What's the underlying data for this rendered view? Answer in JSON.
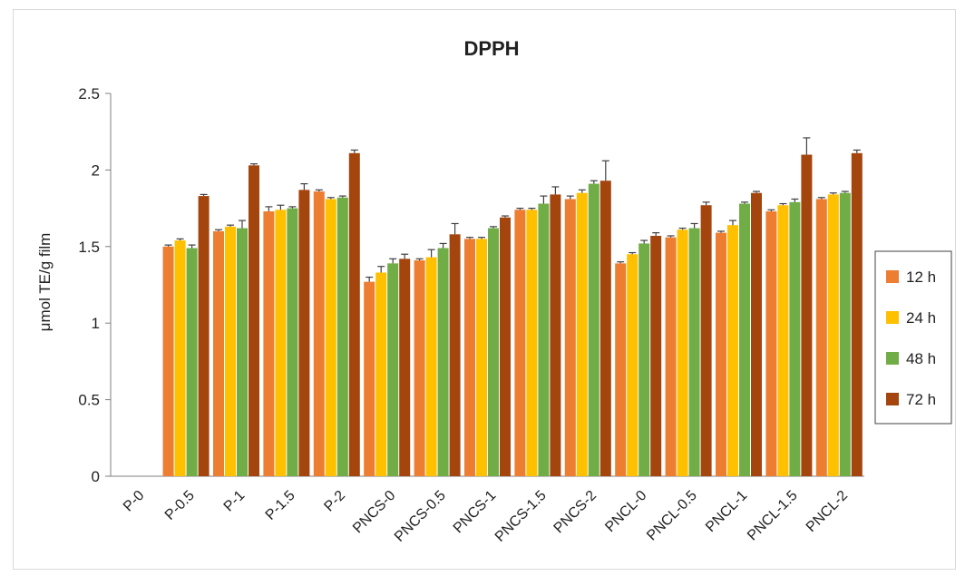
{
  "chart_data": {
    "type": "bar",
    "title": "DPPH",
    "xlabel": "",
    "ylabel": "μmol TE/g film",
    "ylim": [
      0,
      2.5
    ],
    "yticks": [
      "0",
      "0.5",
      "1",
      "1.5",
      "2",
      "2.5"
    ],
    "legend_position": "right",
    "grid": false,
    "categories": [
      "P-0",
      "P-0.5",
      "P-1",
      "P-1.5",
      "P-2",
      "PNCS-0",
      "PNCS-0.5",
      "PNCS-1",
      "PNCS-1.5",
      "PNCS-2",
      "PNCL-0",
      "PNCL-0.5",
      "PNCL-1",
      "PNCL-1.5",
      "PNCL-2"
    ],
    "series": [
      {
        "name": "12 h",
        "color": "#ED7D31",
        "values": [
          0,
          1.5,
          1.6,
          1.73,
          1.86,
          1.27,
          1.41,
          1.55,
          1.74,
          1.81,
          1.39,
          1.56,
          1.59,
          1.73,
          1.81
        ],
        "errors": [
          0,
          0.01,
          0.01,
          0.03,
          0.01,
          0.03,
          0.01,
          0.01,
          0.01,
          0.02,
          0.01,
          0.01,
          0.01,
          0.01,
          0.01
        ]
      },
      {
        "name": "24 h",
        "color": "#FFC000",
        "values": [
          0,
          1.54,
          1.63,
          1.74,
          1.81,
          1.33,
          1.43,
          1.55,
          1.74,
          1.85,
          1.45,
          1.61,
          1.64,
          1.77,
          1.84
        ],
        "errors": [
          0,
          0.01,
          0.01,
          0.03,
          0.01,
          0.04,
          0.05,
          0.01,
          0.01,
          0.02,
          0.01,
          0.01,
          0.03,
          0.01,
          0.01
        ]
      },
      {
        "name": "48 h",
        "color": "#70AD47",
        "values": [
          0,
          1.49,
          1.62,
          1.75,
          1.82,
          1.39,
          1.49,
          1.62,
          1.78,
          1.91,
          1.52,
          1.62,
          1.78,
          1.79,
          1.85
        ],
        "errors": [
          0,
          0.02,
          0.05,
          0.01,
          0.01,
          0.03,
          0.03,
          0.01,
          0.05,
          0.02,
          0.02,
          0.03,
          0.01,
          0.02,
          0.01
        ]
      },
      {
        "name": "72 h",
        "color": "#A5450E",
        "values": [
          0,
          1.83,
          2.03,
          1.87,
          2.11,
          1.42,
          1.58,
          1.69,
          1.84,
          1.93,
          1.57,
          1.77,
          1.85,
          2.1,
          2.11
        ],
        "errors": [
          0,
          0.01,
          0.01,
          0.04,
          0.02,
          0.03,
          0.07,
          0.01,
          0.05,
          0.13,
          0.02,
          0.02,
          0.01,
          0.11,
          0.02
        ]
      }
    ]
  }
}
